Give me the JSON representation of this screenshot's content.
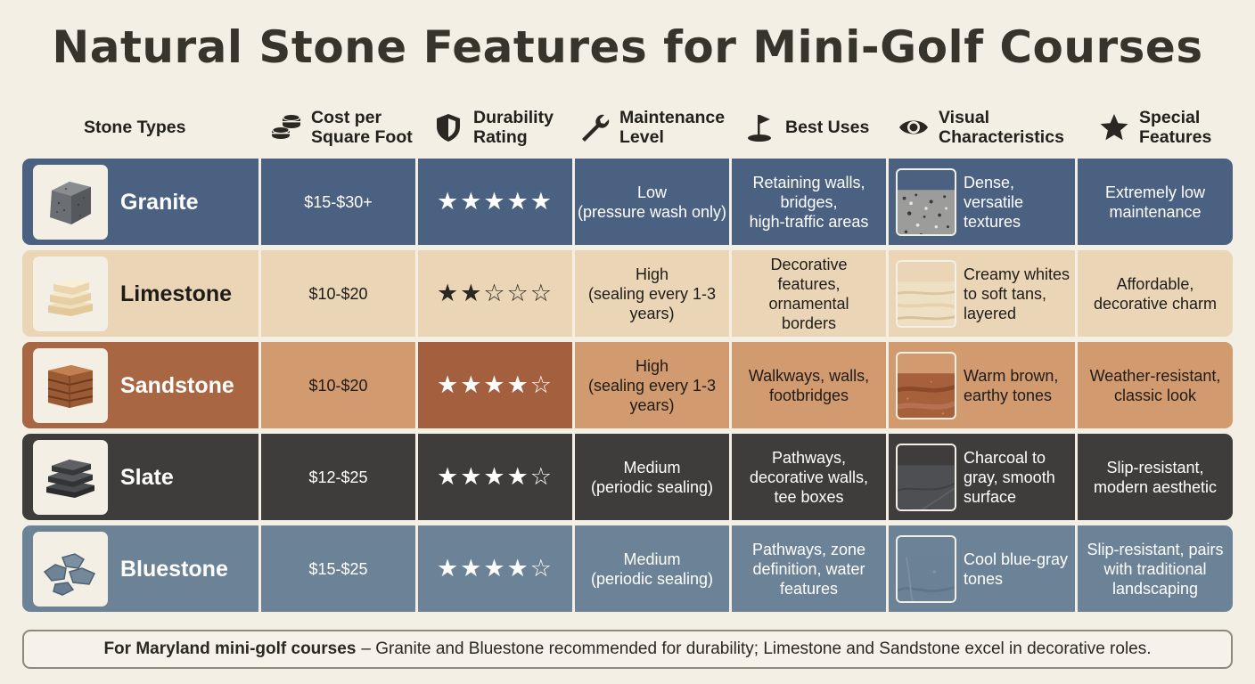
{
  "title": "Natural Stone Features for Mini-Golf Courses",
  "headers": {
    "stone_types": "Stone Types",
    "cost": "Cost per\nSquare Foot",
    "durability": "Durability\nRating",
    "maintenance": "Maintenance\nLevel",
    "best_uses": "Best Uses",
    "visual": "Visual\nCharacteristics",
    "special": "Special\nFeatures"
  },
  "header_icons": {
    "cost": "coins-icon",
    "durability": "shield-icon",
    "maintenance": "wrench-icon",
    "best_uses": "golf-flag-icon",
    "visual": "eye-icon",
    "special": "star-icon"
  },
  "rows": [
    {
      "name": "Granite",
      "cost": "$15-$30+",
      "rating": 5,
      "stars": "★★★★★",
      "maintenance": "Low\n(pressure wash only)",
      "best_uses": "Retaining walls,\nbridges,\nhigh-traffic areas",
      "visual": "Dense,\nversatile\ntextures",
      "special": "Extremely low\nmaintenance",
      "colors": {
        "row": "#4b6181",
        "stars_cell": "#4b6181",
        "text": "#ffffff"
      }
    },
    {
      "name": "Limestone",
      "cost": "$10-$20",
      "rating": 2,
      "stars": "★★☆☆☆",
      "maintenance": "High\n(sealing every 1-3\nyears)",
      "best_uses": "Decorative\nfeatures,\nornamental\nborders",
      "visual": "Creamy whites\nto soft tans,\nlayered",
      "special": "Affordable,\ndecorative charm",
      "colors": {
        "row": "#ead6b6",
        "stars_cell": "#ead6b6",
        "text": "#1f1c18"
      }
    },
    {
      "name": "Sandstone",
      "cost": "$10-$20",
      "rating": 4,
      "stars": "★★★★☆",
      "maintenance": "High\n(sealing every 1-3\nyears)",
      "best_uses": "Walkways, walls,\nfootbridges",
      "visual": "Warm brown,\nearthy tones",
      "special": "Weather-resistant,\nclassic look",
      "colors": {
        "row": "#d29a6f",
        "stars_cell": "#a35f3e",
        "first_cell": "#a86642",
        "text": "#1f1c18"
      }
    },
    {
      "name": "Slate",
      "cost": "$12-$25",
      "rating": 4,
      "stars": "★★★★☆",
      "maintenance": "Medium\n(periodic sealing)",
      "best_uses": "Pathways,\ndecorative walls,\ntee boxes",
      "visual": "Charcoal to\ngray, smooth\nsurface",
      "special": "Slip-resistant,\nmodern aesthetic",
      "colors": {
        "row": "#3e3d3b",
        "stars_cell": "#3e3d3b",
        "text": "#ffffff"
      }
    },
    {
      "name": "Bluestone",
      "cost": "$15-$25",
      "rating": 4,
      "stars": "★★★★☆",
      "maintenance": "Medium\n(periodic sealing)",
      "best_uses": "Pathways, zone\ndefinition, water\nfeatures",
      "visual": "Cool blue-gray\ntones",
      "special": "Slip-resistant, pairs\nwith traditional\nlandscaping",
      "colors": {
        "row": "#6c8397",
        "stars_cell": "#6c8397",
        "text": "#ffffff"
      }
    }
  ],
  "footer": {
    "bold": "For Maryland mini-golf courses",
    "text": "– Granite and Bluestone recommended for durability; Limestone and Sandstone excel in decorative roles."
  }
}
